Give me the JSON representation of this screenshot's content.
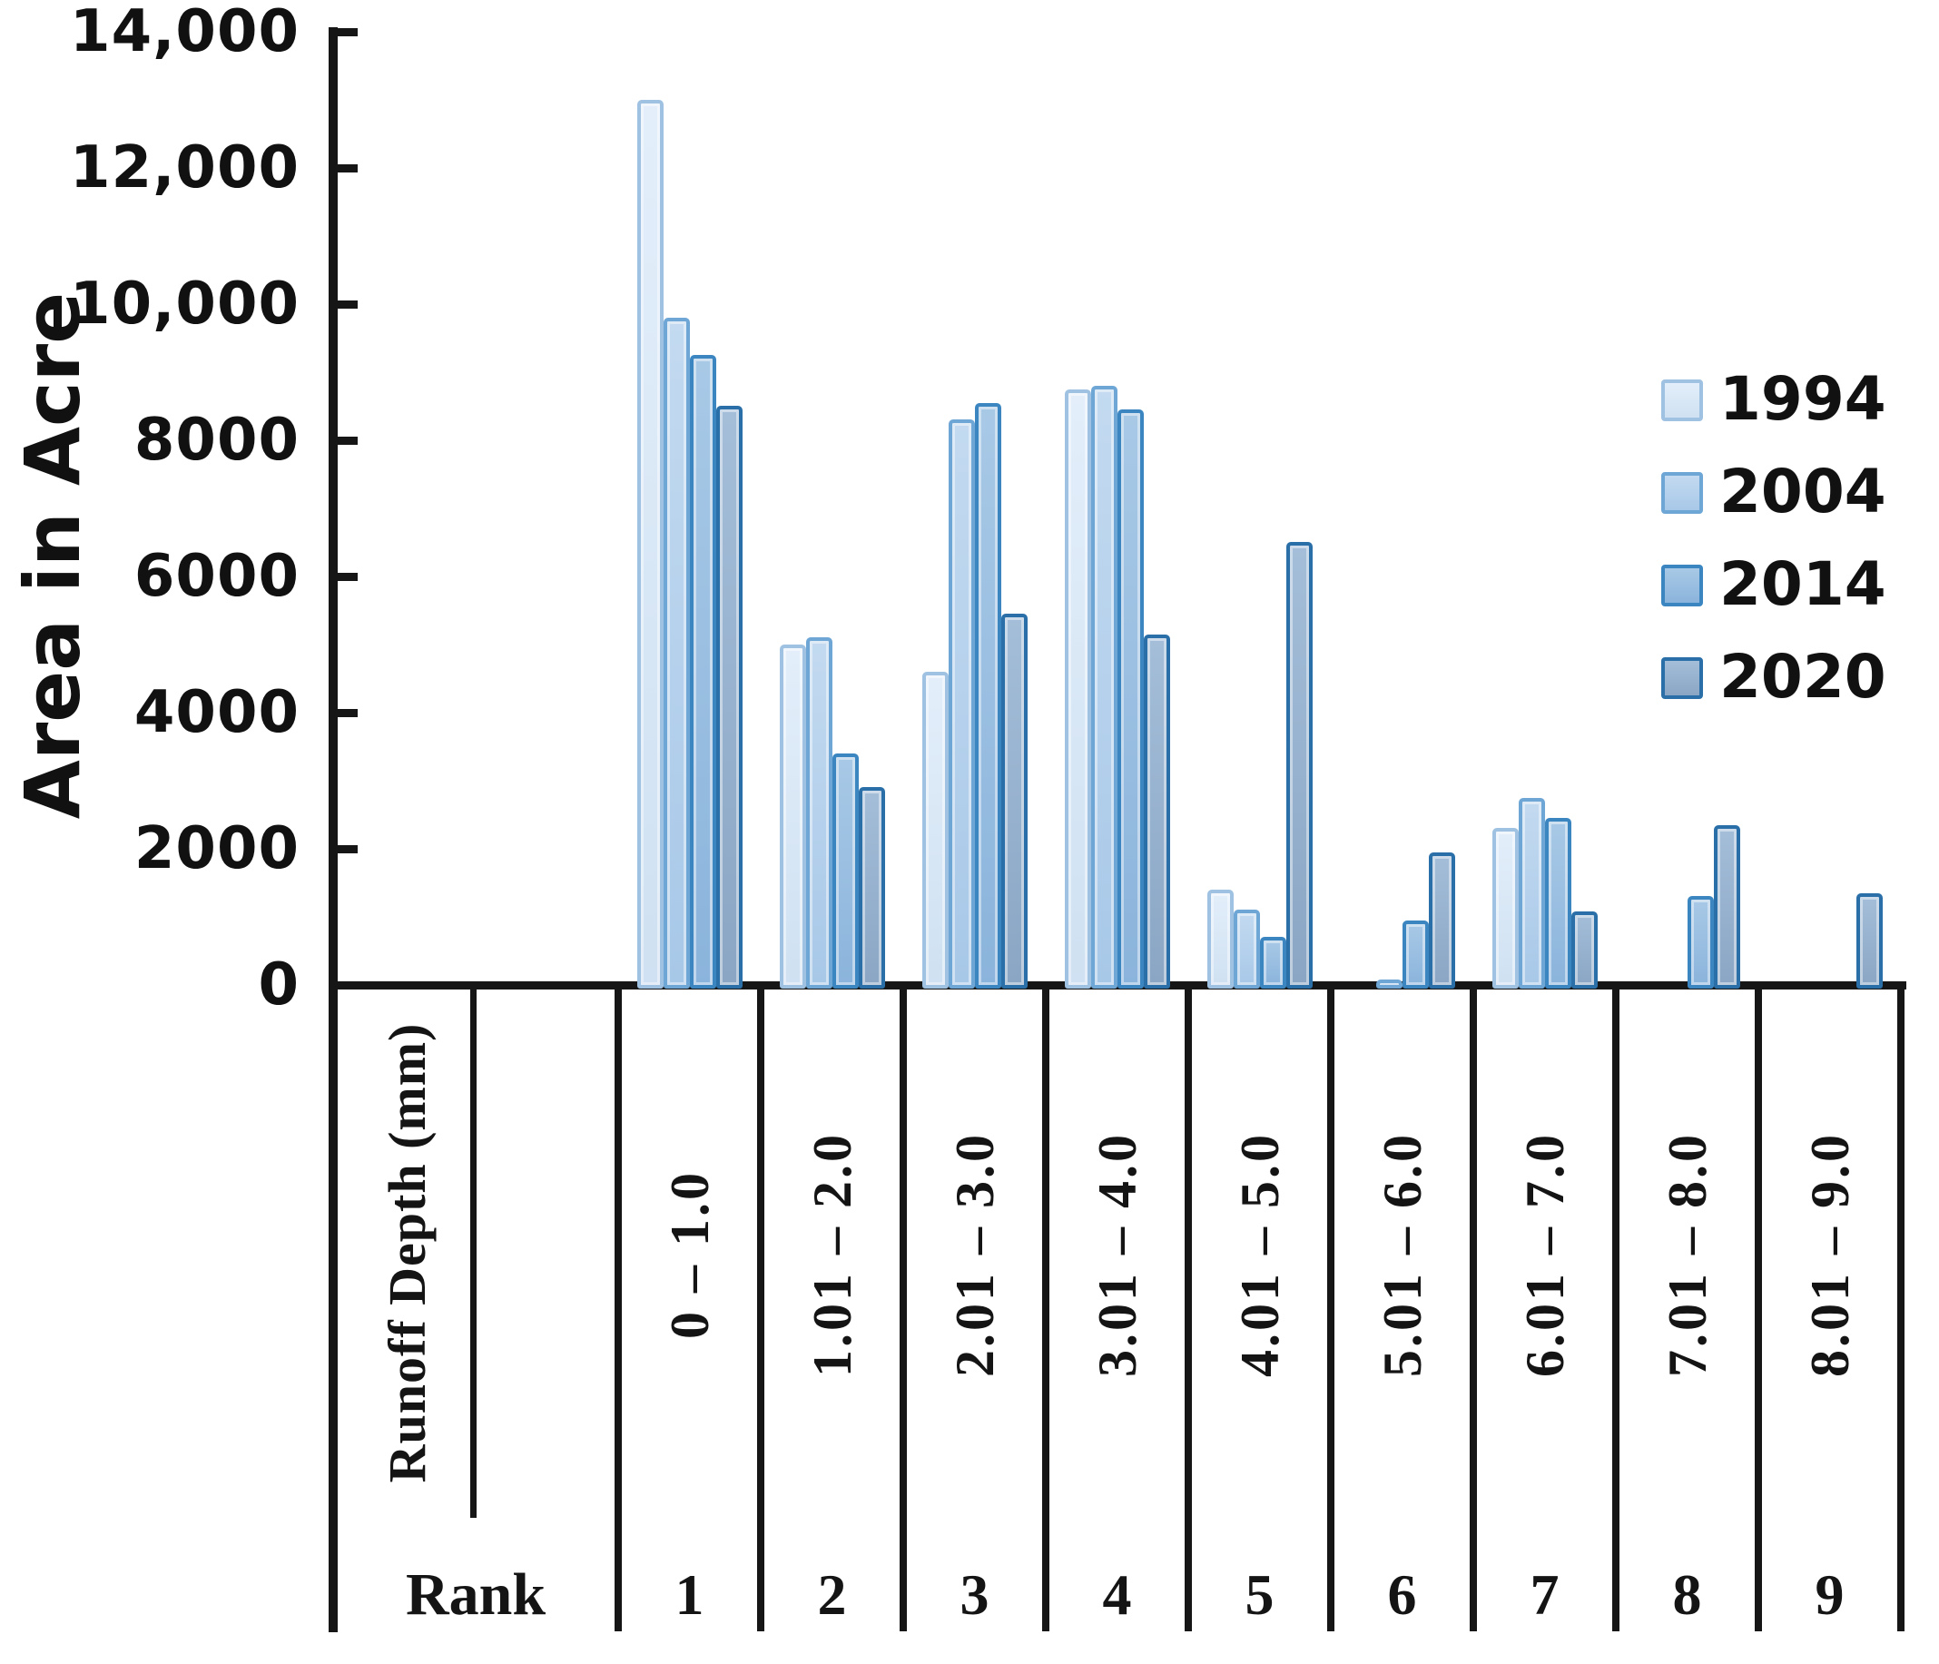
{
  "chart_data": {
    "type": "bar",
    "title": "",
    "ylabel": "Area in Acre",
    "xlabel_header": "Runoff Depth (mm)",
    "rank_label": "Rank",
    "y_ticks": [
      "14,000",
      "12,000",
      "10,000",
      "8000",
      "6000",
      "4000",
      "2000",
      "0"
    ],
    "ylim": [
      0,
      14000
    ],
    "grid": false,
    "legend_position": "upper right",
    "categories": [
      "0 – 1.0",
      "1.01 – 2.0",
      "2.01 – 3.0",
      "3.01 – 4.0",
      "4.01 – 5.0",
      "5.01 – 6.0",
      "6.01 – 7.0",
      "7.01 – 8.0",
      "8.01 – 9.0"
    ],
    "ranks": [
      "1",
      "2",
      "3",
      "4",
      "5",
      "6",
      "7",
      "8",
      "9"
    ],
    "series": [
      {
        "name": "1994",
        "values": [
          13000,
          5000,
          4600,
          8750,
          1400,
          0,
          2300,
          0,
          0
        ],
        "fill_top": "#e3eefa",
        "fill_bottom": "#cfe1f2",
        "border": "#9fc2e2"
      },
      {
        "name": "2004",
        "values": [
          9800,
          5100,
          8300,
          8800,
          1100,
          80,
          2750,
          0,
          0
        ],
        "fill_top": "#c3daf0",
        "fill_bottom": "#a8c8e8",
        "border": "#6ea6d6"
      },
      {
        "name": "2014",
        "values": [
          9250,
          3400,
          8550,
          8450,
          700,
          950,
          2450,
          1300,
          0
        ],
        "fill_top": "#a8c9e6",
        "fill_bottom": "#8bb4dc",
        "border": "#3b86c1"
      },
      {
        "name": "2020",
        "values": [
          8500,
          2900,
          5450,
          5150,
          6500,
          1950,
          1080,
          2350,
          1350
        ],
        "fill_top": "#a4bed9",
        "fill_bottom": "#8aa6c4",
        "border": "#2a6fa8"
      }
    ]
  }
}
